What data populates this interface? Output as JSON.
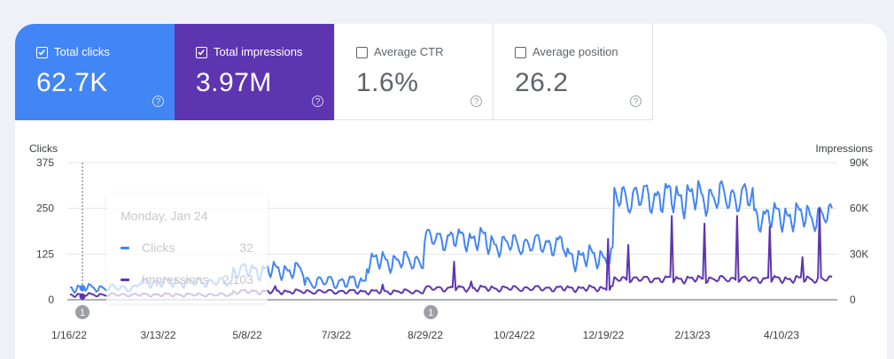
{
  "tiles": [
    {
      "label": "Total clicks",
      "value": "62.7K",
      "selected": true,
      "color": "#4285f4"
    },
    {
      "label": "Total impressions",
      "value": "3.97M",
      "selected": true,
      "color": "#5e35b1"
    },
    {
      "label": "Average CTR",
      "value": "1.6%",
      "selected": false
    },
    {
      "label": "Average position",
      "value": "26.2",
      "selected": false
    }
  ],
  "help_glyph": "?",
  "tooltip": {
    "date": "Monday, Jan 24",
    "rows": [
      {
        "name": "Clicks",
        "value": "32",
        "color": "#4285f4"
      },
      {
        "name": "Impressions",
        "value": "2,103",
        "color": "#5e35b1"
      }
    ]
  },
  "annotations": [
    {
      "label": "1",
      "x": "2022-01-24"
    },
    {
      "label": "1",
      "x": "2022-09-05"
    }
  ],
  "chart_data": {
    "type": "line",
    "xlabel": "",
    "x_tick_labels": [
      "1/16/22",
      "3/13/22",
      "5/8/22",
      "7/3/22",
      "8/29/22",
      "10/24/22",
      "12/19/22",
      "2/13/23",
      "4/10/23"
    ],
    "x_range": [
      "2022-01-16",
      "2023-05-21"
    ],
    "left_axis": {
      "label": "Clicks",
      "ticks": [
        "0",
        "125",
        "250",
        "375"
      ],
      "ylim": [
        0,
        375
      ]
    },
    "right_axis": {
      "label": "Impressions",
      "ticks": [
        "0",
        "30K",
        "60K",
        "90K"
      ],
      "ylim": [
        0,
        90000
      ]
    },
    "grid": true,
    "highlight_date": "2022-01-24",
    "series": [
      {
        "name": "Clicks",
        "axis": "left",
        "color": "#4285f4",
        "segments": [
          {
            "from": "2022-01-16",
            "to": "2022-02-28",
            "base": 30,
            "amp": 14
          },
          {
            "from": "2022-03-01",
            "to": "2022-04-30",
            "base": 45,
            "amp": 18
          },
          {
            "from": "2022-05-01",
            "to": "2022-06-15",
            "base": 75,
            "amp": 30
          },
          {
            "from": "2022-06-16",
            "to": "2022-07-25",
            "base": 45,
            "amp": 25
          },
          {
            "from": "2022-07-26",
            "to": "2022-08-31",
            "base": 100,
            "amp": 35
          },
          {
            "from": "2022-09-01",
            "to": "2022-10-10",
            "base": 160,
            "amp": 40
          },
          {
            "from": "2022-10-11",
            "to": "2022-11-30",
            "base": 145,
            "amp": 40
          },
          {
            "from": "2022-12-01",
            "to": "2022-12-31",
            "base": 110,
            "amp": 40
          },
          {
            "from": "2023-01-01",
            "to": "2023-03-31",
            "base": 270,
            "amp": 60
          },
          {
            "from": "2023-04-01",
            "to": "2023-05-21",
            "base": 220,
            "amp": 50
          }
        ]
      },
      {
        "name": "Impressions",
        "axis": "right",
        "color": "#5e35b1",
        "segments": [
          {
            "from": "2022-01-16",
            "to": "2022-04-30",
            "base": 3000,
            "amp": 1500
          },
          {
            "from": "2022-05-01",
            "to": "2022-08-31",
            "base": 5000,
            "amp": 2000
          },
          {
            "from": "2022-09-01",
            "to": "2022-12-31",
            "base": 7000,
            "amp": 2500
          },
          {
            "from": "2023-01-01",
            "to": "2023-05-21",
            "base": 13000,
            "amp": 3000
          }
        ],
        "spikes": [
          {
            "x": "2022-05-28",
            "y": 9000
          },
          {
            "x": "2022-08-05",
            "y": 10000
          },
          {
            "x": "2022-09-20",
            "y": 25000
          },
          {
            "x": "2022-10-01",
            "y": 12000
          },
          {
            "x": "2022-12-28",
            "y": 40000
          },
          {
            "x": "2023-01-10",
            "y": 36000
          },
          {
            "x": "2023-02-07",
            "y": 55000
          },
          {
            "x": "2023-02-28",
            "y": 50000
          },
          {
            "x": "2023-03-21",
            "y": 55000
          },
          {
            "x": "2023-04-11",
            "y": 48000
          },
          {
            "x": "2023-05-02",
            "y": 28000
          },
          {
            "x": "2023-05-13",
            "y": 60000
          }
        ]
      }
    ]
  }
}
